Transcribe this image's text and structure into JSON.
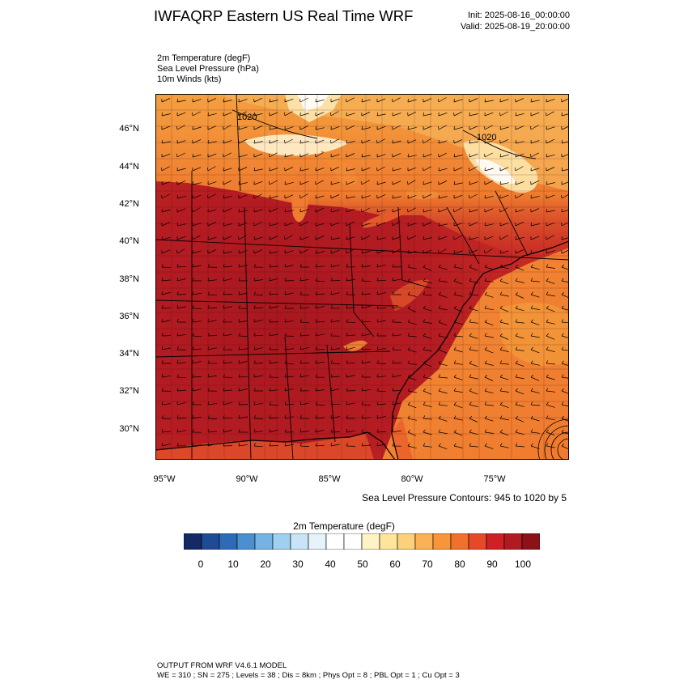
{
  "header": {
    "title": "IWFAQRP Eastern US Real Time WRF",
    "init": "Init: 2025-08-16_00:00:00",
    "valid": "Valid: 2025-08-19_20:00:00"
  },
  "fields": [
    "2m Temperature   (degF)",
    "Sea Level Pressure   (hPa)",
    "10m Winds   (kts)"
  ],
  "map": {
    "lat_labels": [
      "46°N",
      "44°N",
      "42°N",
      "40°N",
      "38°N",
      "36°N",
      "34°N",
      "32°N",
      "30°N"
    ],
    "lon_labels": [
      "95°W",
      "90°W",
      "85°W",
      "80°W",
      "75°W"
    ],
    "contour_labels": [
      "1020",
      "1020"
    ],
    "contour_note": "Sea Level Pressure Contours: 945 to 1020 by 5"
  },
  "colorbar": {
    "title": "2m Temperature  (degF)",
    "tick_labels": [
      "0",
      "10",
      "20",
      "30",
      "40",
      "50",
      "60",
      "70",
      "80",
      "90",
      "100"
    ],
    "colors": [
      "#152a64",
      "#1f4a96",
      "#2e6ab8",
      "#4a8fcf",
      "#74b3e2",
      "#9fd0f0",
      "#c7e5f6",
      "#e6f3fb",
      "#ffffff",
      "#ffffff",
      "#fff2c4",
      "#fee59a",
      "#fdd07a",
      "#fbb256",
      "#f79538",
      "#f1712c",
      "#e44a2a",
      "#cc2226",
      "#b01a22",
      "#8c1219"
    ]
  },
  "footer": {
    "line1": "OUTPUT FROM WRF V4.6.1 MODEL",
    "line2": "WE = 310 ; SN = 275 ; Levels = 38 ; Dis = 8km ; Phys Opt = 8 ; PBL Opt = 1 ; Cu Opt = 3"
  }
}
